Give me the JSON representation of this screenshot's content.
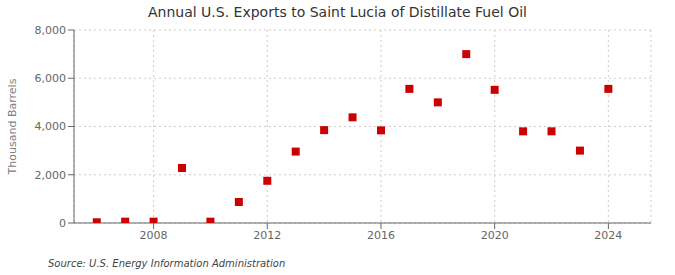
{
  "chart_data": {
    "type": "scatter",
    "title": "Annual U.S. Exports to Saint Lucia of Distillate Fuel Oil",
    "ylabel": "Thousand Barrels",
    "annotation": "Source: U.S. Energy Information Administration",
    "x": [
      2006,
      2007,
      2008,
      2009,
      2010,
      2011,
      2012,
      2013,
      2014,
      2015,
      2016,
      2017,
      2018,
      2019,
      2020,
      2021,
      2022,
      2023,
      2024
    ],
    "values": [
      30,
      55,
      55,
      2280,
      55,
      870,
      1750,
      2960,
      3850,
      4380,
      3840,
      5560,
      5000,
      7000,
      5520,
      3800,
      3800,
      3000,
      5560
    ],
    "color": "#cc0000",
    "marker": "square",
    "xlim": [
      2005.2,
      2025.5
    ],
    "xticks": [
      2008,
      2012,
      2016,
      2020,
      2024
    ],
    "ylim": [
      0,
      8000
    ],
    "yticks": [
      0,
      {
        "value": 2000,
        "label": "2,000"
      },
      {
        "value": 4000,
        "label": "4,000"
      },
      {
        "value": 6000,
        "label": "6,000"
      },
      {
        "value": 8000,
        "label": "8,000"
      }
    ],
    "grid": true
  }
}
